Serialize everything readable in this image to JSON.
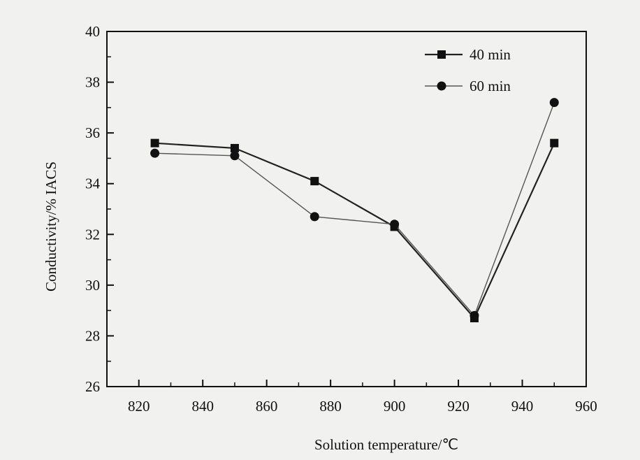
{
  "chart_data": {
    "type": "line",
    "xlabel": "Solution temperature/℃",
    "ylabel": "Conductivity/% IACS",
    "xlim": [
      810,
      960
    ],
    "ylim": [
      26,
      40
    ],
    "xticks": [
      820,
      840,
      860,
      880,
      900,
      920,
      940,
      960
    ],
    "yticks": [
      26,
      28,
      30,
      32,
      34,
      36,
      38,
      40
    ],
    "x": [
      825,
      850,
      875,
      900,
      925,
      950
    ],
    "legend_position": "top-right",
    "grid": false,
    "series": [
      {
        "name": "40 min",
        "marker": "square",
        "color": "#222222",
        "values": [
          35.6,
          35.4,
          34.1,
          32.3,
          28.7,
          35.6
        ]
      },
      {
        "name": "60 min",
        "marker": "circle",
        "color": "#555555",
        "values": [
          35.2,
          35.1,
          32.7,
          32.4,
          28.8,
          37.2
        ]
      }
    ]
  }
}
